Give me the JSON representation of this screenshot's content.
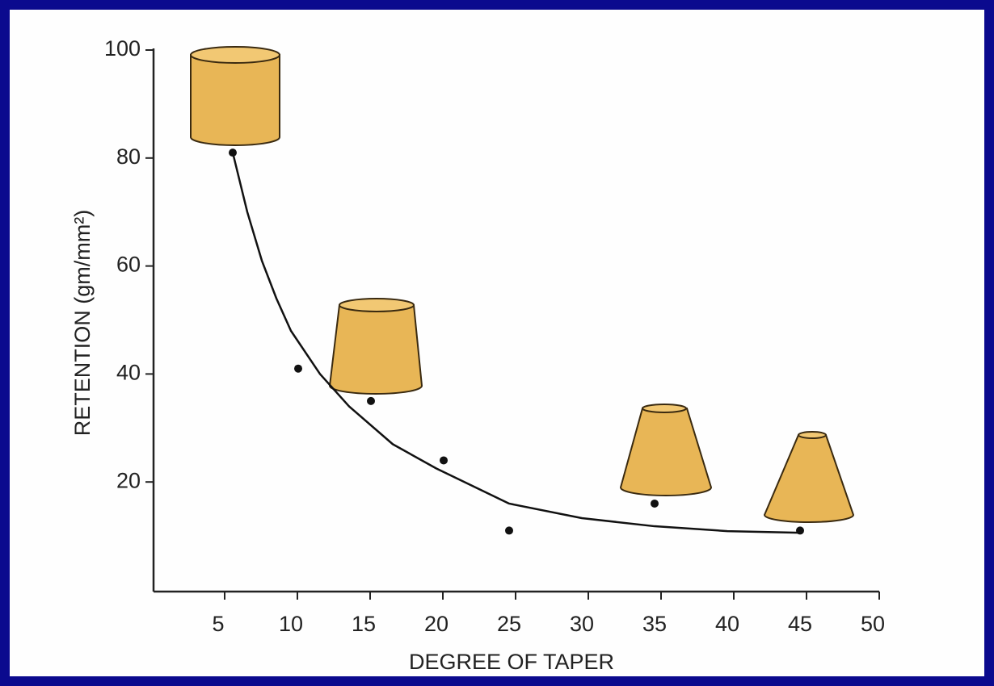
{
  "chart_data": {
    "type": "scatter",
    "x_label": "DEGREE OF TAPER",
    "y_label": "RETENTION (gm/mm²)",
    "xlim": [
      0,
      50
    ],
    "ylim": [
      0,
      100
    ],
    "xticks": [
      5,
      10,
      15,
      20,
      25,
      30,
      35,
      40,
      45,
      50
    ],
    "yticks": [
      20,
      40,
      60,
      80,
      100
    ],
    "series": [
      {
        "type": "scatter",
        "color": "#111111",
        "x": [
          6,
          10.5,
          15.5,
          20.5,
          25,
          35,
          45
        ],
        "values": [
          81,
          41,
          35,
          24,
          11,
          16,
          11
        ]
      },
      {
        "type": "line",
        "color": "#111111",
        "x": [
          6,
          7,
          8,
          9,
          10,
          12,
          14,
          17,
          20,
          25,
          30,
          35,
          40,
          45
        ],
        "values": [
          81,
          70,
          61,
          54,
          48,
          40,
          34,
          27,
          22.5,
          16,
          13.3,
          11.8,
          10.9,
          10.6
        ]
      }
    ]
  }
}
